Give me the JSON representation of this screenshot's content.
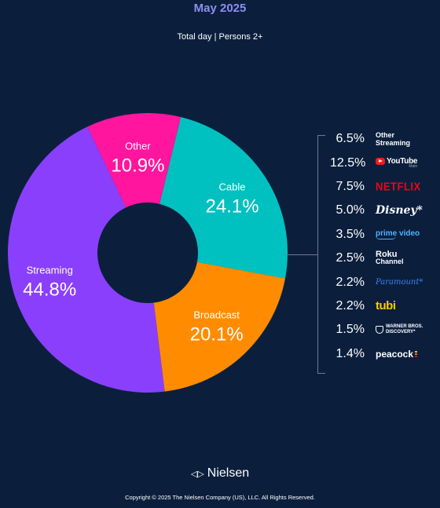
{
  "header": {
    "title": "May 2025",
    "subtitle": "Total day | Persons 2+"
  },
  "colors": {
    "background": "#0b1f3d",
    "title": "#8b8ff0",
    "streaming": "#8a3ffc",
    "other": "#ff159e",
    "cable": "#00c1bf",
    "broadcast": "#ff8c00"
  },
  "chart_data": {
    "type": "pie",
    "variant": "donut",
    "title": "May 2025",
    "subtitle": "Total day | Persons 2+",
    "slices": [
      {
        "label": "Streaming",
        "value": 44.8,
        "display": "44.8%",
        "color": "#8a3ffc"
      },
      {
        "label": "Other",
        "value": 10.9,
        "display": "10.9%",
        "color": "#ff159e"
      },
      {
        "label": "Cable",
        "value": 24.1,
        "display": "24.1%",
        "color": "#00c1bf"
      },
      {
        "label": "Broadcast",
        "value": 20.1,
        "display": "20.1%",
        "color": "#ff8c00"
      }
    ],
    "streaming_breakdown": [
      {
        "label": "Other Streaming",
        "value": 6.5,
        "display": "6.5%"
      },
      {
        "label": "YouTube Main",
        "value": 12.5,
        "display": "12.5%"
      },
      {
        "label": "NETFLIX",
        "value": 7.5,
        "display": "7.5%"
      },
      {
        "label": "Disney*",
        "value": 5.0,
        "display": "5.0%"
      },
      {
        "label": "prime video",
        "value": 3.5,
        "display": "3.5%"
      },
      {
        "label": "Roku Channel",
        "value": 2.5,
        "display": "2.5%"
      },
      {
        "label": "Paramount*",
        "value": 2.2,
        "display": "2.2%"
      },
      {
        "label": "tubi",
        "value": 2.2,
        "display": "2.2%"
      },
      {
        "label": "Warner Bros. Discovery*",
        "value": 1.5,
        "display": "1.5%"
      },
      {
        "label": "peacock",
        "value": 1.4,
        "display": "1.4%"
      }
    ]
  },
  "brands": {
    "other_streaming": "Other\nStreaming",
    "youtube": "YouTube",
    "youtube_sub": "Main",
    "netflix": "NETFLIX",
    "disney": "Disney*",
    "prime": "prime video",
    "roku_top": "Roku",
    "roku_bottom": "Channel",
    "paramount": "Paramount*",
    "tubi": "tubi",
    "wbd_top": "WARNER BROS.",
    "wbd_bottom": "DISCOVERY*",
    "peacock": "peacock"
  },
  "footer": {
    "logo_mark": "◁▷",
    "brand": "Nielsen",
    "copyright": "Copyright © 2025 The Nielsen Company (US), LLC. All Rights Reserved."
  }
}
